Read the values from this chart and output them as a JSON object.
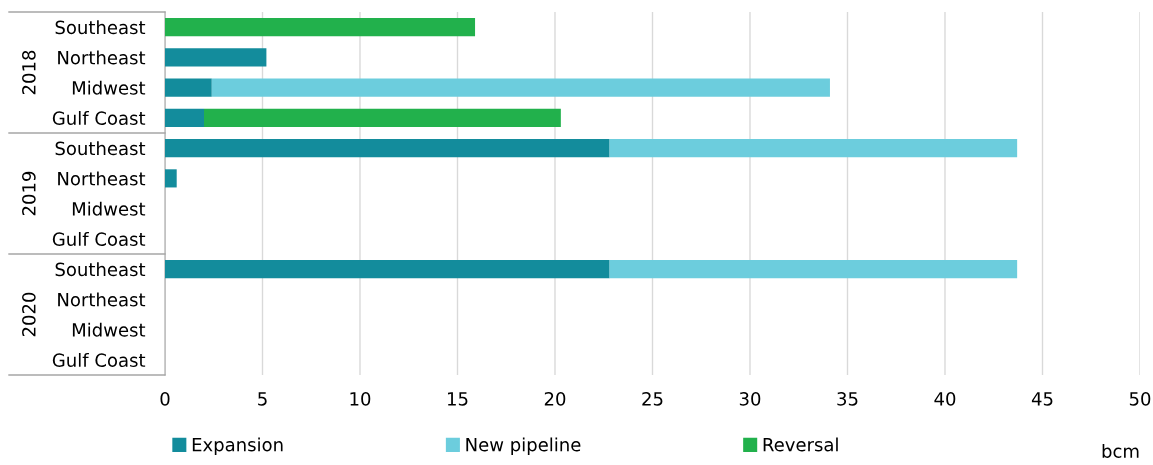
{
  "chart_data": {
    "type": "bar",
    "orientation": "horizontal",
    "stacked": true,
    "categories": [
      "Southeast",
      "Northeast",
      "Midwest",
      "Gulf Coast",
      "Southeast",
      "Northeast",
      "Midwest",
      "Gulf Coast",
      "Southeast",
      "Northeast",
      "Midwest",
      "Gulf Coast"
    ],
    "series": [
      {
        "name": "Expansion",
        "color": "#138c9c",
        "values": [
          null,
          5.2,
          2.4,
          2.0,
          22.8,
          0.6,
          null,
          null,
          22.8,
          null,
          null,
          null
        ]
      },
      {
        "name": "New pipeline",
        "color": "#6ccddd",
        "values": [
          null,
          null,
          31.7,
          null,
          20.9,
          null,
          null,
          null,
          20.9,
          null,
          null,
          null
        ]
      },
      {
        "name": "Reversal",
        "color": "#22b14c",
        "values": [
          15.9,
          null,
          null,
          18.3,
          null,
          null,
          null,
          null,
          null,
          null,
          null,
          null
        ]
      }
    ],
    "annotations": [
      "2018",
      "2019",
      "2020"
    ],
    "xlabel": "bcm",
    "xlim": [
      0,
      50
    ],
    "xticks": [
      0,
      5,
      10,
      15,
      20,
      25,
      30,
      35,
      40,
      45,
      50
    ],
    "grid": "x",
    "legend": "bottom"
  }
}
